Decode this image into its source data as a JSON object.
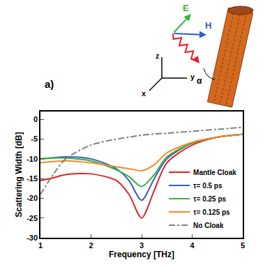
{
  "chart_data": {
    "type": "line",
    "xlabel": "Frequency [THz]",
    "ylabel": "Scattering Width [dB]",
    "x": [
      1,
      1.25,
      1.5,
      2,
      2.5,
      2.75,
      3,
      3.25,
      3.5,
      4,
      4.5,
      5
    ],
    "series": [
      {
        "name": "Mantle Cloak",
        "color": "#e41e26",
        "line_style": "solid",
        "values": [
          -15.5,
          -14.8,
          -14,
          -13.8,
          -15.5,
          -19,
          -25,
          -18,
          -11,
          -6.5,
          -4.5,
          -3.8
        ]
      },
      {
        "name": "τ= 0.5 ps",
        "color": "#2f5fbf",
        "line_style": "solid",
        "values": [
          -10,
          -9.7,
          -9.5,
          -10,
          -12.5,
          -15.5,
          -20.5,
          -15,
          -10,
          -6,
          -4.5,
          -3.8
        ]
      },
      {
        "name": "τ= 0.25 ps",
        "color": "#3cb043",
        "line_style": "solid",
        "values": [
          -10,
          -9.8,
          -9.8,
          -10.5,
          -12.8,
          -14.5,
          -17,
          -14,
          -9.5,
          -6,
          -4.5,
          -3.8
        ]
      },
      {
        "name": "τ= 0.125 ps",
        "color": "#f28a24",
        "line_style": "solid",
        "values": [
          -11,
          -10.7,
          -10.5,
          -11,
          -12,
          -12.5,
          -13,
          -11.5,
          -8.5,
          -5.8,
          -4.5,
          -3.8
        ]
      },
      {
        "name": "No Cloak",
        "color": "#808080",
        "line_style": "dashdot",
        "values": [
          -19,
          -14,
          -10,
          -6.5,
          -5,
          -4.5,
          -4,
          -3.7,
          -3.5,
          -3,
          -2.5,
          -2
        ]
      }
    ],
    "xlim": [
      1,
      5
    ],
    "ylim": [
      -30,
      2
    ],
    "xticks": [
      1,
      2,
      3,
      4,
      5
    ],
    "yticks": [
      -30,
      -25,
      -20,
      -15,
      -10,
      -5,
      0
    ],
    "grid": false,
    "legend": "bottom right",
    "annotations": [
      "a)",
      "E",
      "H",
      "z",
      "y",
      "x",
      "α"
    ]
  }
}
